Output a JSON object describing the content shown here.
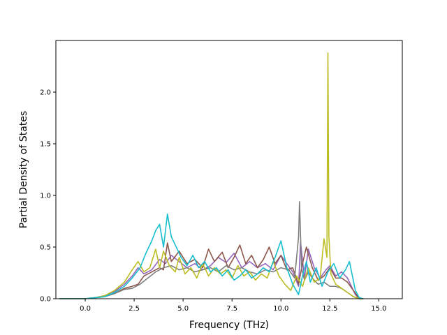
{
  "chart_data": {
    "type": "line",
    "title": "",
    "xlabel": "Frequency (THz)",
    "ylabel": "Partial Density of States",
    "xlim": [
      -1.5,
      16.2
    ],
    "ylim": [
      0.0,
      2.5
    ],
    "xticks": [
      0.0,
      2.5,
      5.0,
      7.5,
      10.0,
      12.5,
      15.0
    ],
    "xtick_labels": [
      "0.0",
      "2.5",
      "5.0",
      "7.5",
      "10.0",
      "12.5",
      "15.0"
    ],
    "yticks": [
      0.0,
      0.5,
      1.0,
      1.5,
      2.0
    ],
    "ytick_labels": [
      "0.0",
      "0.5",
      "1.0",
      "1.5",
      "2.0"
    ],
    "grid": false,
    "legend": "none",
    "series": [
      {
        "color": "#9467bd",
        "x": [
          -1.3,
          0.0,
          0.5,
          1.0,
          1.5,
          2.0,
          2.4,
          2.7,
          3.0,
          3.4,
          3.8,
          4.1,
          4.4,
          4.8,
          5.2,
          5.6,
          6.0,
          6.4,
          6.8,
          7.2,
          7.6,
          8.0,
          8.4,
          8.8,
          9.2,
          9.6,
          10.0,
          10.3,
          10.6,
          10.9,
          11.0,
          11.2,
          11.4,
          11.7,
          12.0,
          12.3,
          12.5,
          12.8,
          13.1,
          13.4,
          13.6,
          13.8,
          14.0,
          14.2
        ],
        "y": [
          0.0,
          0.0,
          0.01,
          0.03,
          0.07,
          0.14,
          0.22,
          0.3,
          0.24,
          0.28,
          0.38,
          0.34,
          0.42,
          0.36,
          0.3,
          0.34,
          0.28,
          0.32,
          0.4,
          0.35,
          0.44,
          0.3,
          0.36,
          0.3,
          0.34,
          0.28,
          0.42,
          0.34,
          0.26,
          0.12,
          0.55,
          0.2,
          0.48,
          0.3,
          0.2,
          0.28,
          0.32,
          0.22,
          0.26,
          0.2,
          0.12,
          0.04,
          0.0,
          0.0
        ]
      },
      {
        "color": "#8c564b",
        "x": [
          -1.3,
          0.0,
          0.5,
          1.0,
          1.5,
          2.0,
          2.4,
          2.7,
          3.0,
          3.4,
          3.8,
          4.0,
          4.2,
          4.4,
          4.8,
          5.2,
          5.6,
          6.0,
          6.3,
          6.6,
          7.0,
          7.3,
          7.6,
          7.9,
          8.2,
          8.5,
          8.8,
          9.1,
          9.4,
          9.7,
          10.0,
          10.3,
          10.6,
          10.9,
          11.1,
          11.3,
          11.6,
          11.9,
          12.2,
          12.5,
          12.8,
          13.1,
          13.4,
          13.7,
          14.0,
          14.2
        ],
        "y": [
          0.0,
          0.0,
          0.01,
          0.02,
          0.05,
          0.1,
          0.12,
          0.14,
          0.22,
          0.26,
          0.3,
          0.28,
          0.54,
          0.36,
          0.46,
          0.34,
          0.38,
          0.3,
          0.48,
          0.36,
          0.45,
          0.3,
          0.4,
          0.52,
          0.34,
          0.42,
          0.3,
          0.38,
          0.5,
          0.34,
          0.42,
          0.28,
          0.3,
          0.14,
          0.34,
          0.5,
          0.3,
          0.18,
          0.22,
          0.3,
          0.2,
          0.2,
          0.16,
          0.08,
          0.0,
          0.0
        ]
      },
      {
        "color": "#7f7f7f",
        "x": [
          -1.3,
          0.0,
          0.5,
          1.0,
          1.5,
          2.0,
          2.4,
          2.8,
          3.2,
          3.6,
          4.0,
          4.4,
          4.8,
          5.2,
          5.6,
          6.0,
          6.4,
          6.8,
          7.2,
          7.6,
          8.0,
          8.4,
          8.8,
          9.2,
          9.6,
          10.0,
          10.4,
          10.7,
          10.9,
          10.95,
          11.05,
          11.2,
          11.4,
          11.6,
          11.9,
          12.2,
          12.5,
          12.8,
          13.1,
          13.4,
          13.7,
          14.0,
          14.2
        ],
        "y": [
          0.0,
          0.0,
          0.01,
          0.02,
          0.05,
          0.09,
          0.1,
          0.14,
          0.2,
          0.26,
          0.3,
          0.32,
          0.28,
          0.3,
          0.26,
          0.28,
          0.3,
          0.26,
          0.32,
          0.28,
          0.3,
          0.26,
          0.24,
          0.28,
          0.26,
          0.3,
          0.28,
          0.2,
          0.6,
          0.94,
          0.3,
          0.18,
          0.26,
          0.2,
          0.14,
          0.16,
          0.12,
          0.12,
          0.1,
          0.06,
          0.02,
          0.0,
          0.0
        ]
      },
      {
        "color": "#bcbd22",
        "x": [
          -1.3,
          0.0,
          0.5,
          1.0,
          1.5,
          2.0,
          2.4,
          2.7,
          3.0,
          3.3,
          3.6,
          3.8,
          4.0,
          4.3,
          4.6,
          4.8,
          5.1,
          5.4,
          5.7,
          6.0,
          6.3,
          6.6,
          6.9,
          7.2,
          7.5,
          7.8,
          8.1,
          8.4,
          8.7,
          9.0,
          9.3,
          9.6,
          9.9,
          10.2,
          10.5,
          10.8,
          11.1,
          11.4,
          11.7,
          12.0,
          12.2,
          12.35,
          12.4,
          12.45,
          12.55,
          12.8,
          13.1,
          13.4,
          13.7,
          14.0,
          14.2
        ],
        "y": [
          0.0,
          0.0,
          0.01,
          0.03,
          0.08,
          0.16,
          0.28,
          0.36,
          0.26,
          0.3,
          0.48,
          0.3,
          0.46,
          0.32,
          0.26,
          0.4,
          0.24,
          0.3,
          0.2,
          0.34,
          0.22,
          0.3,
          0.24,
          0.28,
          0.2,
          0.32,
          0.22,
          0.26,
          0.18,
          0.24,
          0.2,
          0.36,
          0.22,
          0.14,
          0.08,
          0.22,
          0.12,
          0.3,
          0.16,
          0.2,
          0.58,
          0.4,
          2.38,
          0.6,
          0.24,
          0.14,
          0.1,
          0.06,
          0.02,
          0.0,
          0.0
        ]
      },
      {
        "color": "#17becf",
        "x": [
          -1.3,
          0.0,
          0.5,
          1.0,
          1.5,
          2.0,
          2.4,
          2.8,
          3.1,
          3.4,
          3.6,
          3.8,
          4.0,
          4.2,
          4.4,
          4.6,
          4.9,
          5.2,
          5.5,
          5.8,
          6.1,
          6.4,
          6.7,
          7.0,
          7.3,
          7.6,
          7.9,
          8.2,
          8.5,
          8.8,
          9.1,
          9.4,
          9.7,
          10.0,
          10.3,
          10.6,
          10.9,
          11.1,
          11.3,
          11.5,
          11.8,
          12.1,
          12.4,
          12.7,
          13.0,
          13.3,
          13.5,
          13.8,
          14.0,
          14.2
        ],
        "y": [
          0.0,
          0.0,
          0.01,
          0.02,
          0.06,
          0.12,
          0.2,
          0.3,
          0.44,
          0.56,
          0.66,
          0.72,
          0.5,
          0.82,
          0.6,
          0.52,
          0.4,
          0.32,
          0.42,
          0.3,
          0.36,
          0.26,
          0.3,
          0.22,
          0.28,
          0.18,
          0.22,
          0.28,
          0.2,
          0.24,
          0.3,
          0.26,
          0.4,
          0.56,
          0.3,
          0.14,
          0.04,
          0.22,
          0.36,
          0.16,
          0.3,
          0.12,
          0.26,
          0.34,
          0.2,
          0.28,
          0.36,
          0.08,
          0.01,
          0.0
        ]
      }
    ]
  }
}
